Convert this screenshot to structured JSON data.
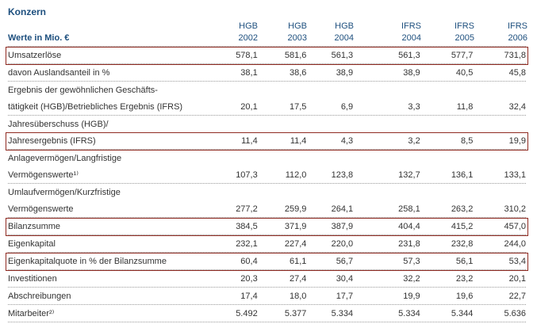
{
  "title": "Konzern",
  "accent_color": "#8f2a21",
  "header_color": "#1d4f7e",
  "table": {
    "row_label": "Werte in Mio. €",
    "columns": [
      {
        "standard": "HGB",
        "year": "2002"
      },
      {
        "standard": "HGB",
        "year": "2003"
      },
      {
        "standard": "HGB",
        "year": "2004"
      },
      {
        "standard": "IFRS",
        "year": "2004"
      },
      {
        "standard": "IFRS",
        "year": "2005"
      },
      {
        "standard": "IFRS",
        "year": "2006"
      }
    ],
    "rows": [
      {
        "label_lines": [
          "Umsatzerlöse"
        ],
        "values": [
          "578,1",
          "581,6",
          "561,3",
          "561,3",
          "577,7",
          "731,8"
        ],
        "highlight": true
      },
      {
        "label_lines": [
          "davon Auslandsanteil in %"
        ],
        "values": [
          "38,1",
          "38,6",
          "38,9",
          "38,9",
          "40,5",
          "45,8"
        ],
        "highlight": false
      },
      {
        "label_lines": [
          "Ergebnis der gewöhnlichen Geschäfts-",
          "tätigkeit (HGB)/Betriebliches Ergebnis (IFRS)"
        ],
        "values": [
          "20,1",
          "17,5",
          "6,9",
          "3,3",
          "11,8",
          "32,4"
        ],
        "highlight": false
      },
      {
        "label_lines": [
          "Jahresüberschuss (HGB)/",
          "Jahresergebnis (IFRS)"
        ],
        "values": [
          "11,4",
          "11,4",
          "4,3",
          "3,2",
          "8,5",
          "19,9"
        ],
        "highlight": true
      },
      {
        "label_lines": [
          "Anlagevermögen/Langfristige",
          "Vermögenswerte¹⁾"
        ],
        "values": [
          "107,3",
          "112,0",
          "123,8",
          "132,7",
          "136,1",
          "133,1"
        ],
        "highlight": false
      },
      {
        "label_lines": [
          "Umlaufvermögen/Kurzfristige",
          "Vermögenswerte"
        ],
        "values": [
          "277,2",
          "259,9",
          "264,1",
          "258,1",
          "263,2",
          "310,2"
        ],
        "highlight": false
      },
      {
        "label_lines": [
          "Bilanzsumme"
        ],
        "values": [
          "384,5",
          "371,9",
          "387,9",
          "404,4",
          "415,2",
          "457,0"
        ],
        "highlight": true
      },
      {
        "label_lines": [
          "Eigenkapital"
        ],
        "values": [
          "232,1",
          "227,4",
          "220,0",
          "231,8",
          "232,8",
          "244,0"
        ],
        "highlight": false
      },
      {
        "label_lines": [
          "Eigenkapitalquote in % der Bilanzsumme"
        ],
        "values": [
          "60,4",
          "61,1",
          "56,7",
          "57,3",
          "56,1",
          "53,4"
        ],
        "highlight": true
      },
      {
        "label_lines": [
          "Investitionen"
        ],
        "values": [
          "20,3",
          "27,4",
          "30,4",
          "32,2",
          "23,2",
          "20,1"
        ],
        "highlight": false
      },
      {
        "label_lines": [
          "Abschreibungen"
        ],
        "values": [
          "17,4",
          "18,0",
          "17,7",
          "19,9",
          "19,6",
          "22,7"
        ],
        "highlight": false
      },
      {
        "label_lines": [
          "Mitarbeiter²⁾"
        ],
        "values": [
          "5.492",
          "5.377",
          "5.334",
          "5.334",
          "5.344",
          "5.636"
        ],
        "highlight": false
      }
    ]
  }
}
